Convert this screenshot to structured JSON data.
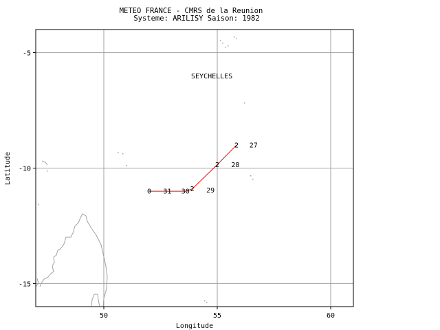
{
  "header": {
    "line1": "METEO FRANCE - CMRS de la Reunion",
    "line2": "Systeme: ARILISY  Saison: 1982"
  },
  "map": {
    "xlabel": "Longitude",
    "ylabel": "Latitude",
    "xlim": [
      47.0,
      61.0
    ],
    "ylim": [
      -16.0,
      -4.0
    ],
    "x_ticks": [
      50,
      55,
      60
    ],
    "y_ticks": [
      -5,
      -10,
      -15
    ],
    "region_label": "SEYCHELLES",
    "track_color": "#ff0000",
    "grid_color": "#a0a0a0",
    "coast_color": "#a0a0a0"
  },
  "chart_data": {
    "type": "scatter",
    "title": "METEO FRANCE - CMRS de la Reunion",
    "subtitle": "Systeme: ARILISY  Saison: 1982",
    "xlabel": "Longitude",
    "ylabel": "Latitude",
    "xlim": [
      47.0,
      61.0
    ],
    "ylim": [
      -16.0,
      -4.0
    ],
    "grid": true,
    "track": [
      {
        "lon": 52.0,
        "lat": -11.0,
        "label": "0"
      },
      {
        "lon": 52.8,
        "lat": -11.0,
        "label": "31"
      },
      {
        "lon": 53.6,
        "lat": -11.0,
        "label": "30"
      },
      {
        "lon": 53.9,
        "lat": -10.9,
        "label": "2"
      },
      {
        "lon": 55.0,
        "lat": -9.85,
        "label": "2"
      },
      {
        "lon": 55.85,
        "lat": -9.0,
        "label": "2"
      }
    ],
    "day_labels": [
      {
        "lon": 54.7,
        "lat": -10.95,
        "text": "29"
      },
      {
        "lon": 55.8,
        "lat": -9.85,
        "text": "28"
      },
      {
        "lon": 56.6,
        "lat": -9.0,
        "text": "27"
      }
    ]
  }
}
